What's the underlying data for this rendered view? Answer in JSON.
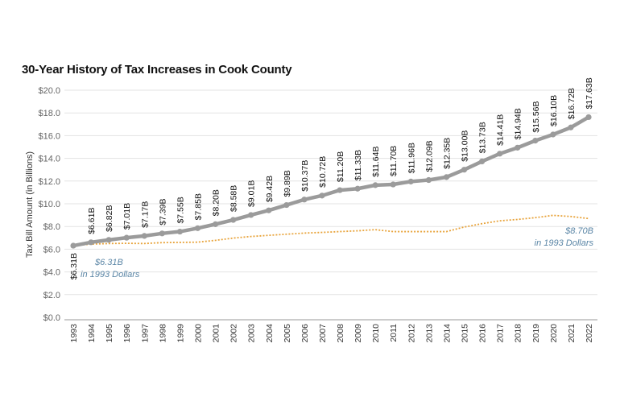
{
  "chart_data": {
    "type": "line",
    "title": "30-Year History of Tax Increases in Cook County",
    "ylabel": "Tax Bill Amount (in Billions)",
    "xlabel": "",
    "ylim": [
      0,
      20
    ],
    "yticks": [
      "$0.0",
      "$2.0",
      "$4.0",
      "$6.0",
      "$8.0",
      "$10.0",
      "$12.0",
      "$14.0",
      "$16.0",
      "$18.0",
      "$20.0"
    ],
    "grid": true,
    "x": [
      "1993",
      "1994",
      "1995",
      "1996",
      "1997",
      "1998",
      "1999",
      "2000",
      "2001",
      "2002",
      "2003",
      "2004",
      "2005",
      "2006",
      "2007",
      "2008",
      "2009",
      "2010",
      "2011",
      "2012",
      "2013",
      "2014",
      "2015",
      "2016",
      "2017",
      "2018",
      "2019",
      "2020",
      "2021",
      "2022"
    ],
    "series": [
      {
        "name": "",
        "color": "#9b9b9b",
        "style": "solid-with-markers",
        "values": [
          6.31,
          6.61,
          6.82,
          7.01,
          7.17,
          7.39,
          7.55,
          7.85,
          8.2,
          8.58,
          9.01,
          9.42,
          9.89,
          10.37,
          10.72,
          11.2,
          11.33,
          11.64,
          11.7,
          11.96,
          12.09,
          12.35,
          13.0,
          13.73,
          14.41,
          14.94,
          15.56,
          16.1,
          16.72,
          17.63
        ],
        "labels": [
          "$6.31B",
          "$6.61B",
          "$6.82B",
          "$7.01B",
          "$7.17B",
          "$7.39B",
          "$7.55B",
          "$7.85B",
          "$8.20B",
          "$8.58B",
          "$9.01B",
          "$9.42B",
          "$9.89B",
          "$10.37B",
          "$10.72B",
          "$11.20B",
          "$11.33B",
          "$11.64B",
          "$11.70B",
          "$11.96B",
          "$12.09B",
          "$12.35B",
          "$13.00B",
          "$13.73B",
          "$14.41B",
          "$14.94B",
          "$15.56B",
          "$16.10B",
          "$16.72B",
          "$17.63B"
        ]
      },
      {
        "name": "in 1993 Dollars",
        "color": "#e8a33a",
        "style": "dotted",
        "values": [
          6.31,
          6.45,
          6.5,
          6.52,
          6.5,
          6.58,
          6.6,
          6.62,
          6.78,
          6.98,
          7.12,
          7.22,
          7.32,
          7.42,
          7.48,
          7.55,
          7.62,
          7.72,
          7.55,
          7.55,
          7.55,
          7.55,
          7.95,
          8.25,
          8.5,
          8.62,
          8.78,
          8.98,
          8.88,
          8.7
        ]
      }
    ],
    "annotations": [
      {
        "value_line1": "$6.31B",
        "line2": "in 1993 Dollars"
      },
      {
        "value_line1": "$8.70B",
        "line2": "in 1993 Dollars"
      }
    ]
  }
}
